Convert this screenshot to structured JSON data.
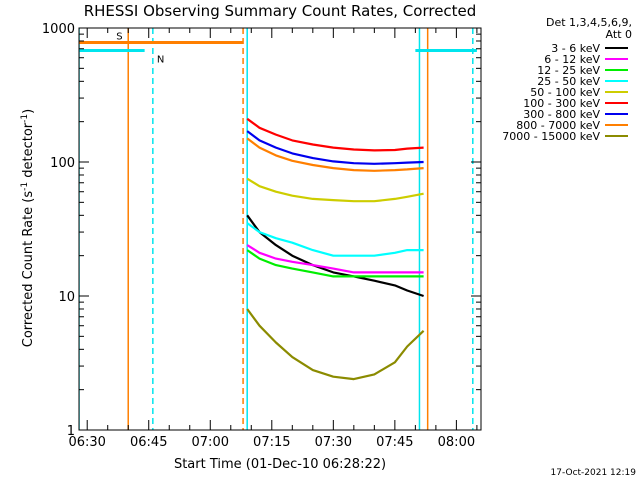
{
  "chart_data": {
    "type": "line",
    "title": "RHESSI Observing Summary Count Rates, Corrected",
    "xlabel": "Start Time (01-Dec-10 06:28:22)",
    "ylabel": "Corrected Count Rate (s⁻¹ detector⁻¹)",
    "ylabel_main": "Corrected Count Rate (s",
    "ylabel_sup1": "-1",
    "ylabel_mid": " detector",
    "ylabel_sup2": "-1",
    "ylabel_end": ")",
    "yscale": "log",
    "ylim": [
      1,
      1000
    ],
    "xlim": [
      "06:28",
      "08:06"
    ],
    "x_ticks": [
      "06:30",
      "06:45",
      "07:00",
      "07:15",
      "07:30",
      "07:45",
      "08:00"
    ],
    "y_ticks": [
      "1",
      "10",
      "100",
      "1000"
    ],
    "legend_position": "right",
    "legend_header": [
      "Det 1,3,4,5,6,9,",
      "Att 0"
    ],
    "timestamp": "17-Oct-2021 12:19",
    "flags": [
      {
        "label": "S",
        "start": "06:28",
        "end": "07:08",
        "y": 780,
        "color": "#ff7f00"
      },
      {
        "label": "N",
        "start": "06:28",
        "end": "06:44",
        "y": 680,
        "color": "#00e5ee"
      },
      {
        "label": "",
        "start": "07:50",
        "end": "08:05",
        "y": 680,
        "color": "#00e5ee"
      }
    ],
    "markers": [
      {
        "time": "06:28",
        "color": "#00e5ee",
        "style": "solid"
      },
      {
        "time": "06:40",
        "color": "#ff7f00",
        "style": "solid"
      },
      {
        "time": "06:46",
        "color": "#00e5ee",
        "style": "dashed"
      },
      {
        "time": "07:08",
        "color": "#ff7f00",
        "style": "dashed"
      },
      {
        "time": "07:09",
        "color": "#00e5ee",
        "style": "solid"
      },
      {
        "time": "07:51",
        "color": "#00e5ee",
        "style": "solid"
      },
      {
        "time": "07:53",
        "color": "#ff7f00",
        "style": "solid"
      },
      {
        "time": "08:04",
        "color": "#00e5ee",
        "style": "dashed"
      }
    ],
    "series": [
      {
        "name": "3 - 6 keV",
        "color": "#000000",
        "x": [
          "07:09",
          "07:12",
          "07:16",
          "07:20",
          "07:25",
          "07:30",
          "07:35",
          "07:40",
          "07:45",
          "07:48",
          "07:52"
        ],
        "values": [
          40,
          30,
          24,
          20,
          17,
          15,
          14,
          13,
          12,
          11,
          10
        ]
      },
      {
        "name": "6 - 12 keV",
        "color": "#ff00ff",
        "x": [
          "07:09",
          "07:12",
          "07:16",
          "07:20",
          "07:25",
          "07:30",
          "07:35",
          "07:40",
          "07:45",
          "07:48",
          "07:52"
        ],
        "values": [
          24,
          21,
          19,
          18,
          17,
          16,
          15,
          15,
          15,
          15,
          15
        ]
      },
      {
        "name": "12 - 25 keV",
        "color": "#00ee00",
        "x": [
          "07:09",
          "07:12",
          "07:16",
          "07:20",
          "07:25",
          "07:30",
          "07:35",
          "07:40",
          "07:45",
          "07:48",
          "07:52"
        ],
        "values": [
          22,
          19,
          17,
          16,
          15,
          14,
          14,
          14,
          14,
          14,
          14
        ]
      },
      {
        "name": "25 - 50 keV",
        "color": "#00ffff",
        "x": [
          "07:09",
          "07:12",
          "07:16",
          "07:20",
          "07:25",
          "07:30",
          "07:35",
          "07:40",
          "07:45",
          "07:48",
          "07:52"
        ],
        "values": [
          35,
          30,
          27,
          25,
          22,
          20,
          20,
          20,
          21,
          22,
          22
        ]
      },
      {
        "name": "50 - 100 keV",
        "color": "#cdcd00",
        "x": [
          "07:09",
          "07:12",
          "07:16",
          "07:20",
          "07:25",
          "07:30",
          "07:35",
          "07:40",
          "07:45",
          "07:48",
          "07:52"
        ],
        "values": [
          75,
          66,
          60,
          56,
          53,
          52,
          51,
          51,
          53,
          55,
          58
        ]
      },
      {
        "name": "100 - 300 keV",
        "color": "#ff0000",
        "x": [
          "07:09",
          "07:12",
          "07:16",
          "07:20",
          "07:25",
          "07:30",
          "07:35",
          "07:40",
          "07:45",
          "07:48",
          "07:52"
        ],
        "values": [
          210,
          180,
          160,
          145,
          135,
          128,
          124,
          122,
          123,
          126,
          128
        ]
      },
      {
        "name": "300 - 800 keV",
        "color": "#0000ee",
        "x": [
          "07:09",
          "07:12",
          "07:16",
          "07:20",
          "07:25",
          "07:30",
          "07:35",
          "07:40",
          "07:45",
          "07:48",
          "07:52"
        ],
        "values": [
          170,
          145,
          128,
          116,
          107,
          101,
          98,
          97,
          98,
          99,
          100
        ]
      },
      {
        "name": "800 - 7000 keV",
        "color": "#ff7f00",
        "x": [
          "07:09",
          "07:12",
          "07:16",
          "07:20",
          "07:25",
          "07:30",
          "07:35",
          "07:40",
          "07:45",
          "07:48",
          "07:52"
        ],
        "values": [
          150,
          128,
          112,
          102,
          95,
          90,
          87,
          86,
          87,
          88,
          90
        ]
      },
      {
        "name": "7000 - 15000 keV",
        "color": "#8b8b00",
        "x": [
          "07:09",
          "07:12",
          "07:16",
          "07:20",
          "07:25",
          "07:30",
          "07:35",
          "07:40",
          "07:45",
          "07:48",
          "07:52"
        ],
        "values": [
          8,
          6,
          4.5,
          3.5,
          2.8,
          2.5,
          2.4,
          2.6,
          3.2,
          4.2,
          5.5
        ]
      }
    ]
  }
}
